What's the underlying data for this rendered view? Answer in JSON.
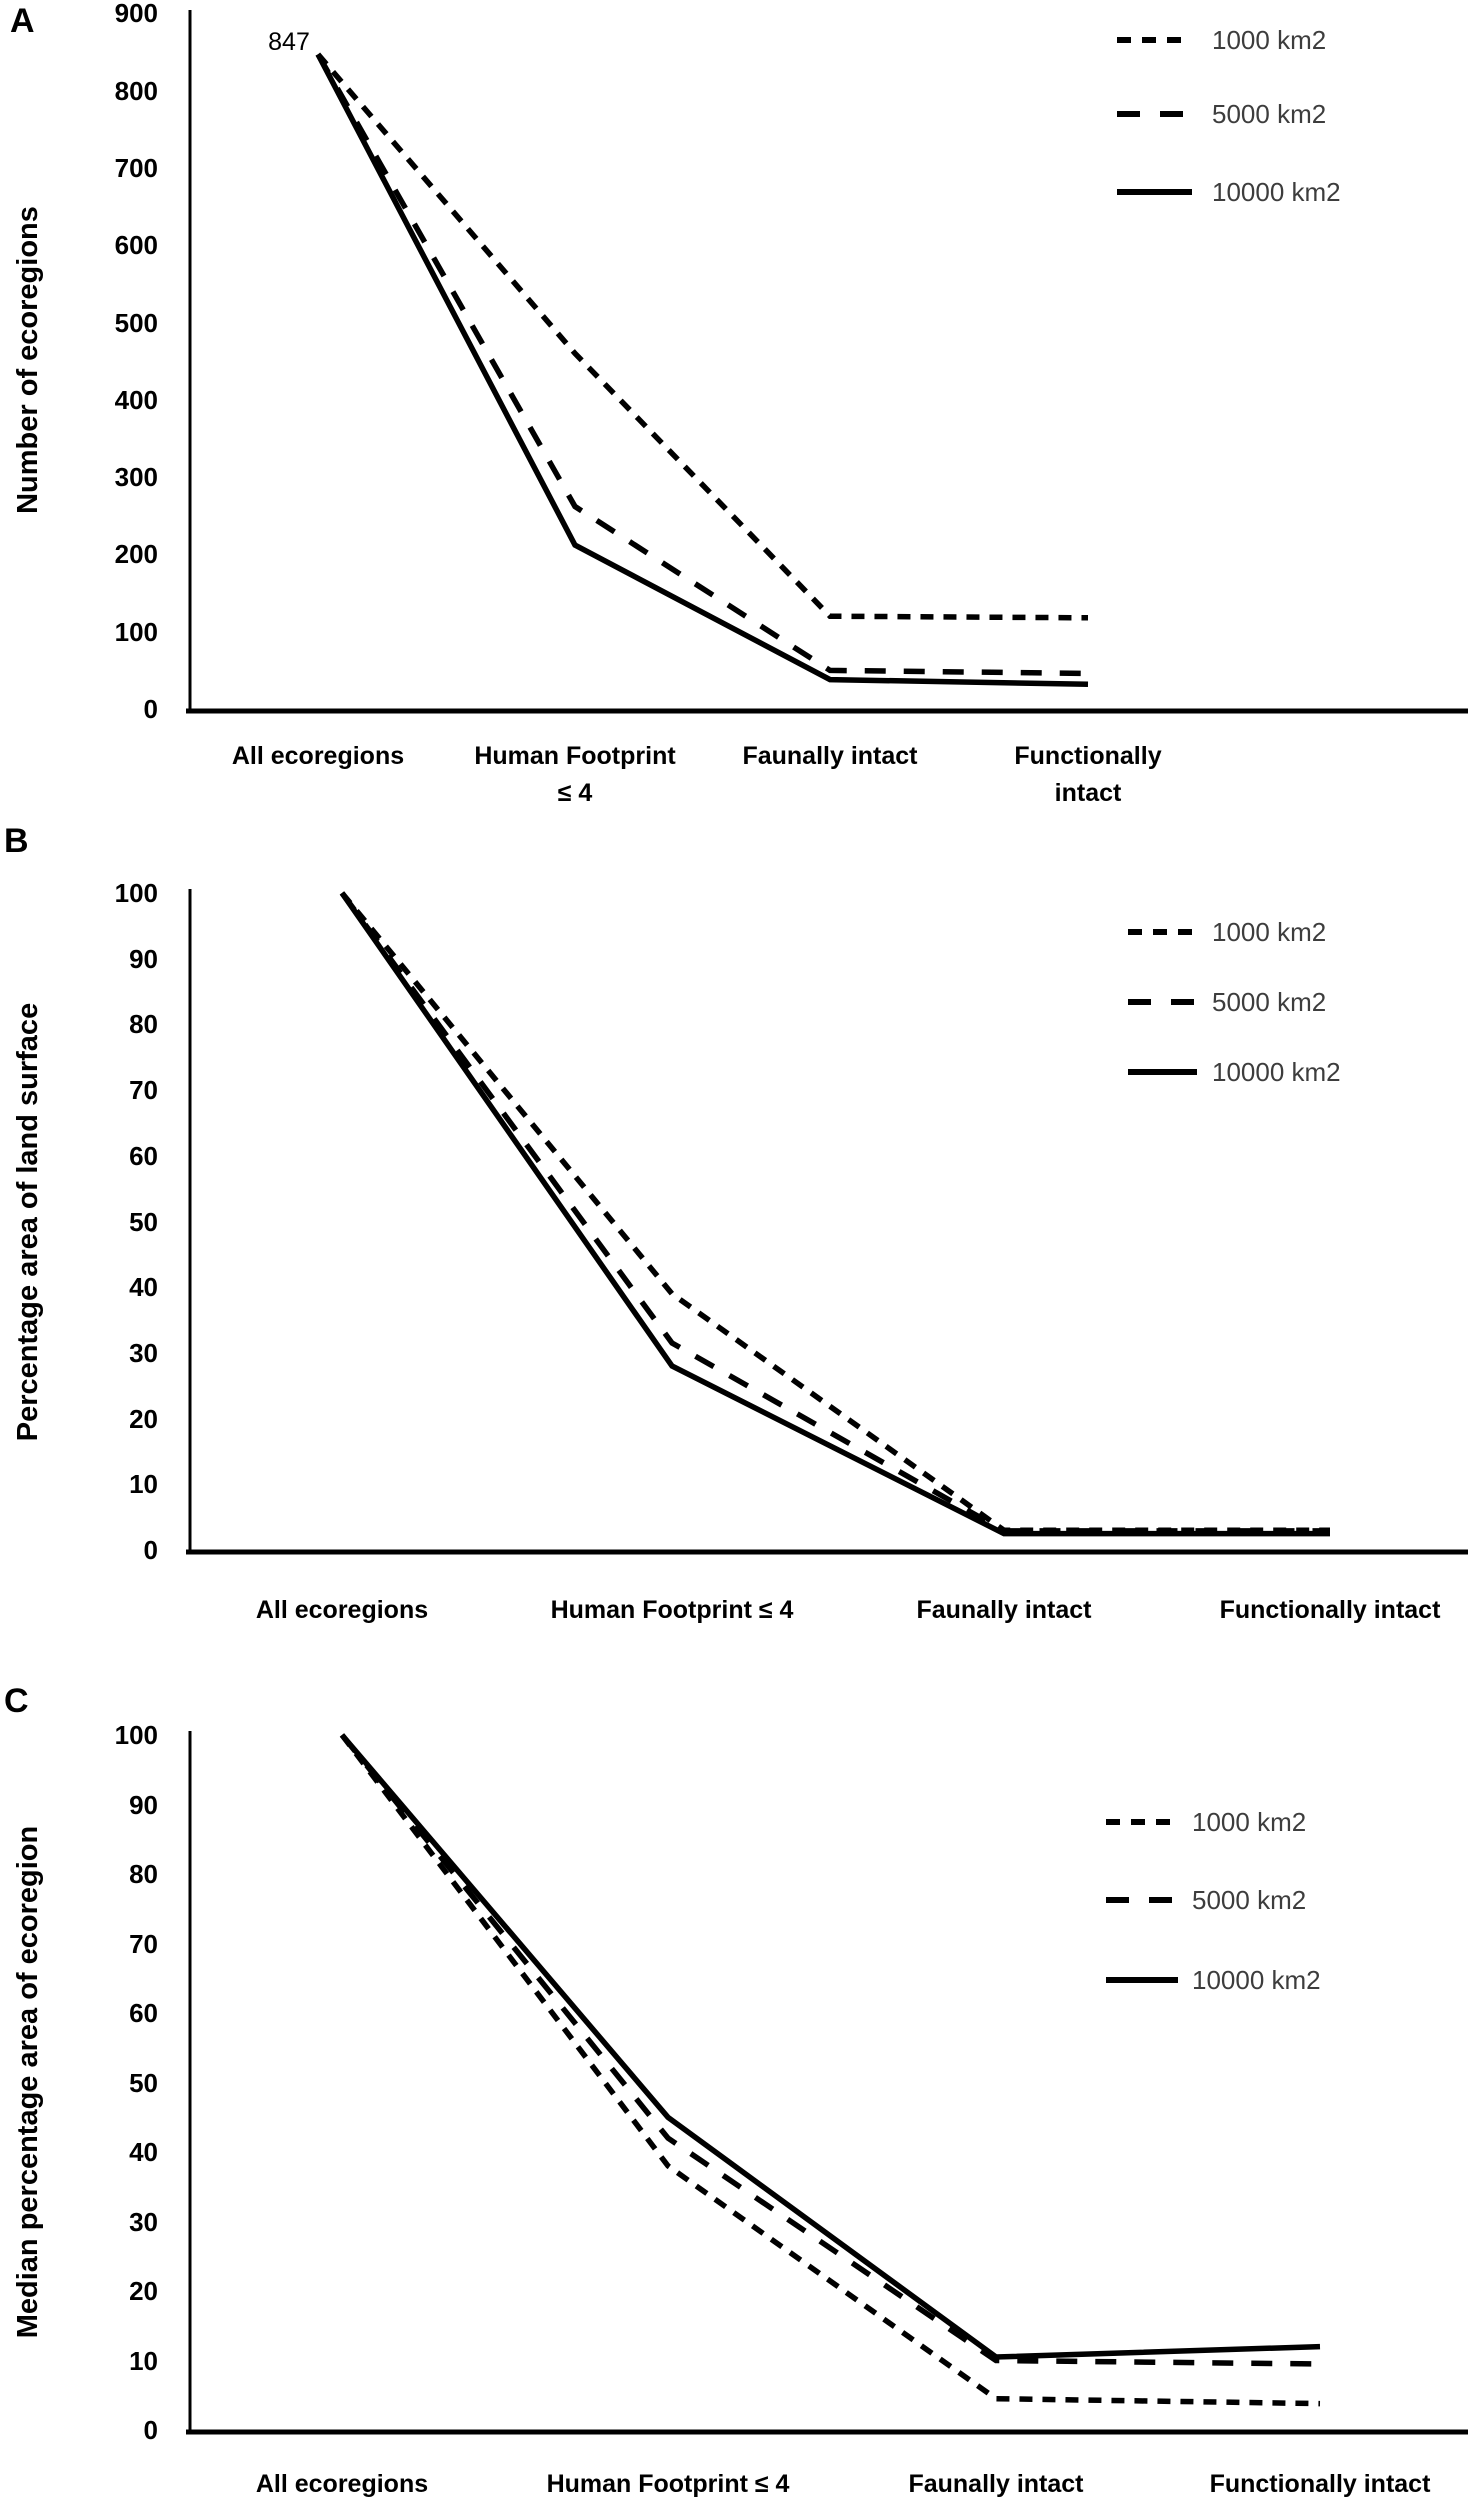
{
  "chart_data": [
    {
      "panel_label": "A",
      "type": "line",
      "title": "",
      "xlabel": "",
      "ylabel": "Number of ecoregions",
      "ylim": [
        0,
        900
      ],
      "y_ticks": [
        900,
        800,
        700,
        600,
        500,
        400,
        300,
        200,
        100,
        0
      ],
      "categories": [
        "All ecoregions",
        "Human Footprint ≤ 4",
        "Faunally intact",
        "Functionally intact"
      ],
      "annotation": "847",
      "grid": false,
      "legend_position": "top-right",
      "line_color": "#000000",
      "series": [
        {
          "name": "1000 km2",
          "dash": "small-dash",
          "values": [
            847,
            460,
            120,
            118
          ]
        },
        {
          "name": "5000 km2",
          "dash": "long-dash",
          "values": [
            847,
            262,
            50,
            46
          ]
        },
        {
          "name": "10000 km2",
          "dash": "solid",
          "values": [
            847,
            212,
            38,
            32
          ]
        }
      ]
    },
    {
      "panel_label": "B",
      "type": "line",
      "title": "",
      "xlabel": "",
      "ylabel": "Percentage area of land surface",
      "ylim": [
        0,
        100
      ],
      "y_ticks": [
        100,
        90,
        80,
        70,
        60,
        50,
        40,
        30,
        20,
        10,
        0
      ],
      "categories": [
        "All ecoregions",
        "Human Footprint ≤ 4",
        "Faunally intact",
        "Functionally intact"
      ],
      "annotation": "",
      "grid": false,
      "legend_position": "top-right",
      "line_color": "#000000",
      "series": [
        {
          "name": "1000 km2",
          "dash": "small-dash",
          "values": [
            100,
            39,
            3,
            3
          ]
        },
        {
          "name": "5000 km2",
          "dash": "long-dash",
          "values": [
            100,
            31.5,
            2.9,
            2.9
          ]
        },
        {
          "name": "10000 km2",
          "dash": "solid",
          "values": [
            100,
            28,
            2.5,
            2.5
          ]
        }
      ]
    },
    {
      "panel_label": "C",
      "type": "line",
      "title": "",
      "xlabel": "",
      "ylabel": "Median percentage area of ecoregion",
      "ylim": [
        0,
        100
      ],
      "y_ticks": [
        100,
        90,
        80,
        70,
        60,
        50,
        40,
        30,
        20,
        10,
        0
      ],
      "categories": [
        "All ecoregions",
        "Human Footprint ≤ 4",
        "Faunally intact",
        "Functionally intact"
      ],
      "annotation": "",
      "grid": false,
      "legend_position": "right",
      "line_color": "#000000",
      "series": [
        {
          "name": "1000 km2",
          "dash": "small-dash",
          "values": [
            100,
            38,
            4.5,
            3.8
          ]
        },
        {
          "name": "5000 km2",
          "dash": "long-dash",
          "values": [
            100,
            42,
            10,
            9.5
          ]
        },
        {
          "name": "10000 km2",
          "dash": "solid",
          "values": [
            100,
            45,
            10.5,
            12
          ]
        }
      ]
    }
  ]
}
